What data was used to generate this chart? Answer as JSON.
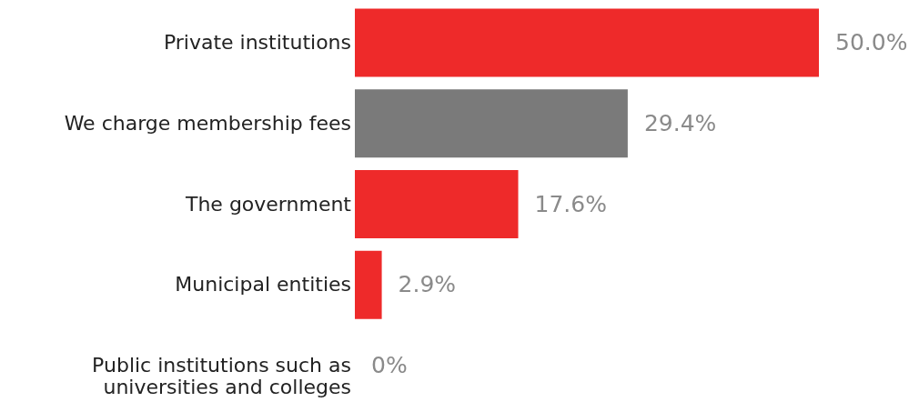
{
  "chart_data": {
    "type": "bar",
    "orientation": "horizontal",
    "categories": [
      "Private institutions",
      "We charge membership fees",
      "The government",
      "Municipal entities",
      "Public institutions such as universities and colleges"
    ],
    "values": [
      50.0,
      29.4,
      17.6,
      2.9,
      0
    ],
    "colors": [
      "#ee2a2a",
      "#7a7a7a",
      "#ee2a2a",
      "#ee2a2a",
      "#ee2a2a"
    ],
    "value_labels": [
      "50.0%",
      "29.4%",
      "17.6%",
      "2.9%",
      "0%"
    ]
  }
}
